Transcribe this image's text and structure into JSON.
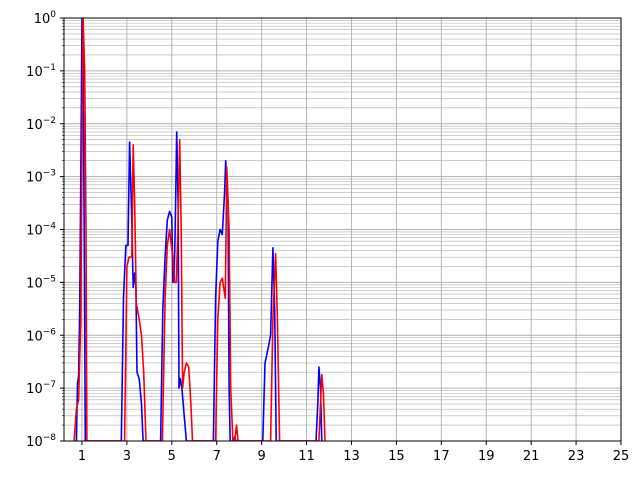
{
  "chart_data": {
    "type": "line",
    "title": "",
    "xlabel": "",
    "ylabel": "",
    "xlim": [
      0.2,
      25
    ],
    "ylim": [
      1e-08,
      1
    ],
    "yscale": "log",
    "grid": "major and minor",
    "x_ticks": [
      1,
      3,
      5,
      7,
      9,
      11,
      13,
      15,
      17,
      19,
      21,
      23,
      25
    ],
    "y_ticks": [
      {
        "base": "10",
        "exp": "−8",
        "value": 1e-08
      },
      {
        "base": "10",
        "exp": "−7",
        "value": 1e-07
      },
      {
        "base": "10",
        "exp": "−6",
        "value": 1e-06
      },
      {
        "base": "10",
        "exp": "−5",
        "value": 1e-05
      },
      {
        "base": "10",
        "exp": "−4",
        "value": 0.0001
      },
      {
        "base": "10",
        "exp": "−3",
        "value": 0.001
      },
      {
        "base": "10",
        "exp": "−2",
        "value": 0.01
      },
      {
        "base": "10",
        "exp": "−1",
        "value": 0.1
      },
      {
        "base": "10",
        "exp": "0",
        "value": 1
      }
    ],
    "series": [
      {
        "color": "#0000ff",
        "points": [
          [
            0.75,
            1e-08
          ],
          [
            0.8,
            1.2e-07
          ],
          [
            0.85,
            1.7e-07
          ],
          [
            0.9,
            3e-06
          ],
          [
            0.95,
            0.001
          ],
          [
            1.0,
            1
          ],
          [
            1.05,
            0.3
          ],
          [
            1.1,
            0.0001
          ],
          [
            1.15,
            1e-08
          ],
          [
            2.75,
            1e-08
          ],
          [
            2.85,
            5e-06
          ],
          [
            2.95,
            5e-05
          ],
          [
            3.05,
            5e-05
          ],
          [
            3.12,
            0.0045
          ],
          [
            3.2,
            0.0003
          ],
          [
            3.28,
            8e-06
          ],
          [
            3.35,
            1.5e-05
          ],
          [
            3.4,
            8e-06
          ],
          [
            3.45,
            2e-07
          ],
          [
            3.55,
            1.5e-07
          ],
          [
            3.65,
            5e-08
          ],
          [
            3.72,
            1e-08
          ],
          [
            4.5,
            1e-08
          ],
          [
            4.6,
            3e-06
          ],
          [
            4.7,
            3e-05
          ],
          [
            4.8,
            0.00015
          ],
          [
            4.9,
            0.00022
          ],
          [
            5.0,
            0.00017
          ],
          [
            5.05,
            1e-05
          ],
          [
            5.1,
            1.2e-05
          ],
          [
            5.15,
            0.0001
          ],
          [
            5.22,
            0.007
          ],
          [
            5.28,
            0.0003
          ],
          [
            5.32,
            1e-07
          ],
          [
            5.38,
            1.5e-07
          ],
          [
            5.45,
            1e-07
          ],
          [
            5.55,
            3e-08
          ],
          [
            5.65,
            1e-08
          ],
          [
            6.85,
            1e-08
          ],
          [
            6.95,
            5e-06
          ],
          [
            7.05,
            6e-05
          ],
          [
            7.15,
            0.0001
          ],
          [
            7.25,
            8e-05
          ],
          [
            7.35,
            0.0005
          ],
          [
            7.4,
            0.002
          ],
          [
            7.5,
            0.0003
          ],
          [
            7.55,
            1e-07
          ],
          [
            7.6,
            1e-08
          ],
          [
            7.65,
            1e-08
          ],
          [
            7.7,
            8e-09
          ],
          [
            7.8,
            1.2e-08
          ],
          [
            7.85,
            1e-08
          ],
          [
            9.05,
            1e-08
          ],
          [
            9.15,
            3e-07
          ],
          [
            9.3,
            6e-07
          ],
          [
            9.4,
            1e-06
          ],
          [
            9.5,
            4.5e-05
          ],
          [
            9.58,
            3e-06
          ],
          [
            9.65,
            1e-08
          ],
          [
            11.42,
            1e-08
          ],
          [
            11.5,
            5e-08
          ],
          [
            11.55,
            2.5e-07
          ],
          [
            11.62,
            1e-07
          ],
          [
            11.68,
            1e-08
          ]
        ]
      },
      {
        "color": "#ff0000",
        "points": [
          [
            0.65,
            1e-08
          ],
          [
            0.75,
            4e-08
          ],
          [
            0.85,
            6e-08
          ],
          [
            0.95,
            2e-06
          ],
          [
            1.0,
            0.003
          ],
          [
            1.05,
            1
          ],
          [
            1.12,
            0.1
          ],
          [
            1.18,
            0.0001
          ],
          [
            1.22,
            1e-08
          ],
          [
            2.9,
            1e-08
          ],
          [
            3.0,
            2e-05
          ],
          [
            3.1,
            3e-05
          ],
          [
            3.22,
            3e-05
          ],
          [
            3.28,
            0.004
          ],
          [
            3.35,
            0.0003
          ],
          [
            3.42,
            4e-06
          ],
          [
            3.55,
            2e-06
          ],
          [
            3.65,
            1e-06
          ],
          [
            3.75,
            2e-07
          ],
          [
            3.85,
            1e-08
          ],
          [
            4.58,
            1e-08
          ],
          [
            4.7,
            5e-06
          ],
          [
            4.8,
            5e-05
          ],
          [
            4.9,
            0.0001
          ],
          [
            4.98,
            5e-05
          ],
          [
            5.05,
            3e-05
          ],
          [
            5.12,
            1e-05
          ],
          [
            5.2,
            1e-05
          ],
          [
            5.27,
            0.0001
          ],
          [
            5.35,
            0.005
          ],
          [
            5.42,
            0.0001
          ],
          [
            5.48,
            1e-07
          ],
          [
            5.55,
            2e-07
          ],
          [
            5.65,
            3e-07
          ],
          [
            5.75,
            2.5e-07
          ],
          [
            5.85,
            5e-08
          ],
          [
            5.92,
            1e-08
          ],
          [
            6.95,
            1e-08
          ],
          [
            7.05,
            2e-06
          ],
          [
            7.15,
            1e-05
          ],
          [
            7.25,
            1.2e-05
          ],
          [
            7.38,
            5e-06
          ],
          [
            7.45,
            0.0015
          ],
          [
            7.55,
            0.0001
          ],
          [
            7.62,
            1e-07
          ],
          [
            7.72,
            1e-08
          ],
          [
            7.8,
            1e-08
          ],
          [
            7.88,
            2e-08
          ],
          [
            7.95,
            1e-08
          ],
          [
            9.4,
            1e-08
          ],
          [
            9.5,
            2e-06
          ],
          [
            9.62,
            3.5e-05
          ],
          [
            9.7,
            2e-06
          ],
          [
            9.8,
            1e-08
          ],
          [
            11.55,
            1e-08
          ],
          [
            11.62,
            5e-08
          ],
          [
            11.68,
            1.8e-07
          ],
          [
            11.75,
            8e-08
          ],
          [
            11.82,
            1e-08
          ]
        ]
      }
    ]
  }
}
